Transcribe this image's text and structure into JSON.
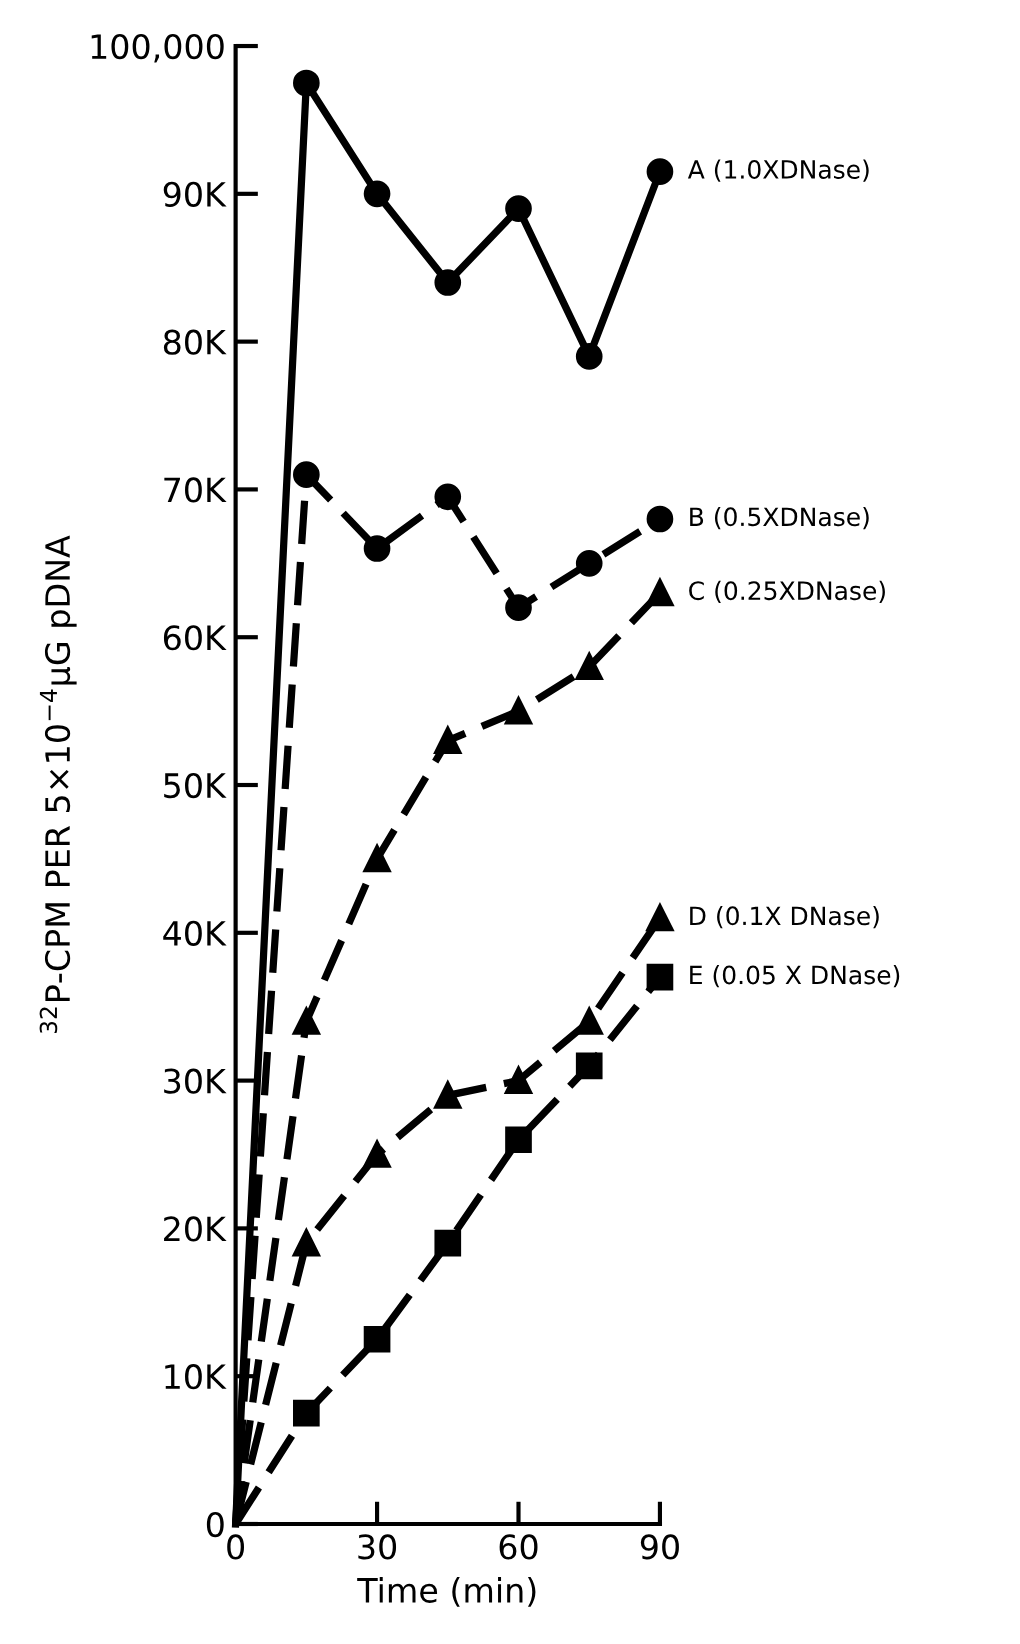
{
  "chart_data": {
    "type": "line",
    "xlabel": "Time (min)",
    "ylabel": "$^{32}$P-CPM PER 5×10$^{−4}$µG pDNA",
    "x": [
      0,
      15,
      30,
      45,
      60,
      75,
      90
    ],
    "xlim": [
      0,
      90
    ],
    "xticks": [
      0,
      30,
      60,
      90
    ],
    "ylim": [
      0,
      100000
    ],
    "yticks": [
      {
        "value": 0,
        "label": "0"
      },
      {
        "value": 10000,
        "label": "10K"
      },
      {
        "value": 20000,
        "label": "20K"
      },
      {
        "value": 30000,
        "label": "30K"
      },
      {
        "value": 40000,
        "label": "40K"
      },
      {
        "value": 50000,
        "label": "50K"
      },
      {
        "value": 60000,
        "label": "60K"
      },
      {
        "value": 70000,
        "label": "70K"
      },
      {
        "value": 80000,
        "label": "80K"
      },
      {
        "value": 90000,
        "label": "90K"
      },
      {
        "value": 100000,
        "label": "100,000"
      }
    ],
    "grid": false,
    "legend": false,
    "series": [
      {
        "name": "A (1.0XDNase)",
        "color": "#000000",
        "marker": "circle",
        "line_style": "solid",
        "values": [
          0,
          97500,
          90000,
          84000,
          89000,
          79000,
          91500
        ]
      },
      {
        "name": "B (0.5XDNase)",
        "color": "#000000",
        "marker": "circle",
        "line_style": "dashed",
        "values": [
          0,
          71000,
          66000,
          69500,
          62000,
          65000,
          68000
        ]
      },
      {
        "name": "C (0.25XDNase)",
        "color": "#000000",
        "marker": "triangle",
        "line_style": "dashed",
        "values": [
          0,
          34000,
          45000,
          53000,
          55000,
          58000,
          63000
        ]
      },
      {
        "name": "D (0.1X DNase)",
        "color": "#000000",
        "marker": "triangle",
        "line_style": "dashed",
        "values": [
          0,
          19000,
          25000,
          29000,
          30000,
          34000,
          41000
        ]
      },
      {
        "name": "E (0.05 X DNase)",
        "color": "#000000",
        "marker": "square",
        "line_style": "dashed",
        "values": [
          0,
          7500,
          12500,
          19000,
          26000,
          31000,
          37000
        ]
      }
    ]
  }
}
